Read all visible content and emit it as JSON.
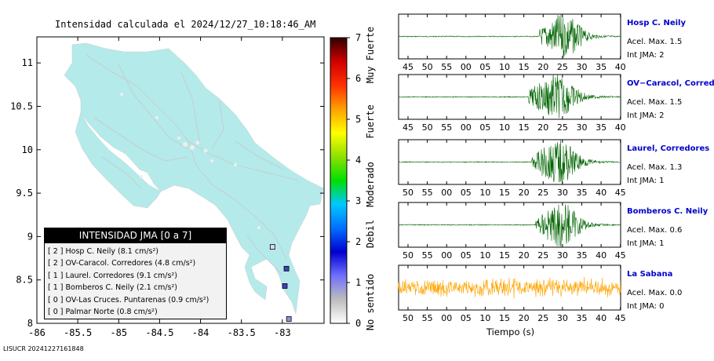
{
  "title": "Intensidad calculada el 2024/12/27_10:18:46_AM",
  "footer": "LISUCR 20241227161848",
  "map": {
    "x_ticks": [
      "-86",
      "-85.5",
      "-85",
      "-84.5",
      "-84",
      "-83.5",
      "-83"
    ],
    "y_ticks": [
      "11",
      "10.5",
      "10",
      "9.5",
      "9",
      "8.5",
      "8"
    ],
    "land_color": "#b4eaea",
    "stations": [
      {
        "lon": -83.12,
        "lat": 8.88,
        "color": "#d8d8ff"
      },
      {
        "lon": -82.95,
        "lat": 8.63,
        "color": "#4040c0"
      },
      {
        "lon": -82.97,
        "lat": 8.43,
        "color": "#4040c0"
      },
      {
        "lon": -82.92,
        "lat": 8.05,
        "color": "#9090e0"
      }
    ]
  },
  "legend": {
    "header": "INTENSIDAD JMA [0 a 7]",
    "items": [
      {
        "jma": "[ 2 ]",
        "text": "Hosp C. Neily (8.1 cm/s²)"
      },
      {
        "jma": "[ 2 ]",
        "text": "OV-Caracol. Corredores (4.8 cm/s²)"
      },
      {
        "jma": "[ 1 ]",
        "text": "Laurel. Corredores (9.1 cm/s²)"
      },
      {
        "jma": "[ 1 ]",
        "text": "Bomberos C. Neily (2.1 cm/s²)"
      },
      {
        "jma": "[ 0 ]",
        "text": "OV-Las Cruces. Puntarenas (0.9 cm/s²)"
      },
      {
        "jma": "[ 0 ]",
        "text": "Palmar Norte (0.8 cm/s²)"
      }
    ]
  },
  "colorbar": {
    "ticks": [
      "0",
      "1",
      "2",
      "3",
      "4",
      "5",
      "6",
      "7"
    ],
    "labels": [
      "No sentido",
      "Debil",
      "Moderado",
      "Fuerte",
      "Muy Fuerte"
    ],
    "colors": [
      "#ffffff",
      "#bdbdbd",
      "#7070ff",
      "#0000d0",
      "#0070ff",
      "#00c8ff",
      "#00e000",
      "#90e000",
      "#ffff00",
      "#ffa000",
      "#ff3000",
      "#d00000",
      "#300000"
    ]
  },
  "waveforms": {
    "xlabel": "Tiempo (s)",
    "panels": [
      {
        "name": "Hosp C. Neily",
        "acel": "Acel. Max. 1.5",
        "int": "Int JMA: 2",
        "color": "#006400",
        "ticks": [
          "45",
          "50",
          "55",
          "00",
          "05",
          "10",
          "15",
          "20",
          "25",
          "30",
          "35",
          "40"
        ],
        "first": 45,
        "onset": 23
      },
      {
        "name": "OV−Caracol, Corredore",
        "acel": "Acel. Max. 1.5",
        "int": "Int JMA: 2",
        "color": "#006400",
        "ticks": [
          "45",
          "50",
          "55",
          "00",
          "05",
          "10",
          "15",
          "20",
          "25",
          "30",
          "35",
          "40"
        ],
        "first": 45,
        "onset": 20
      },
      {
        "name": "Laurel, Corredores",
        "acel": "Acel. Max. 1.3",
        "int": "Int JMA: 1",
        "color": "#006400",
        "ticks": [
          "50",
          "55",
          "00",
          "05",
          "10",
          "15",
          "20",
          "25",
          "30",
          "35",
          "40",
          "45"
        ],
        "first": 50,
        "onset": 21
      },
      {
        "name": "Bomberos C. Neily",
        "acel": "Acel. Max. 0.6",
        "int": "Int JMA: 1",
        "color": "#006400",
        "ticks": [
          "50",
          "55",
          "00",
          "05",
          "10",
          "15",
          "20",
          "25",
          "30",
          "35",
          "40",
          "45"
        ],
        "first": 50,
        "onset": 22
      },
      {
        "name": "La Sabana",
        "acel": "Acel. Max. 0.0",
        "int": "Int JMA: 0",
        "color": "#ffa500",
        "ticks": [
          "50",
          "55",
          "00",
          "05",
          "10",
          "15",
          "20",
          "25",
          "30",
          "35",
          "40",
          "45"
        ],
        "first": 50,
        "onset": -1
      }
    ]
  },
  "chart_data": {
    "type": "line",
    "title": "Intensidad calculada el 2024/12/27_10:18:46_AM",
    "xlabel": "Tiempo (s)",
    "series": [
      {
        "name": "Hosp C. Neily",
        "peak": 1.5,
        "jma": 2
      },
      {
        "name": "OV−Caracol, Corredore",
        "peak": 1.5,
        "jma": 2
      },
      {
        "name": "Laurel, Corredores",
        "peak": 1.3,
        "jma": 1
      },
      {
        "name": "Bomberos C. Neily",
        "peak": 0.6,
        "jma": 1
      },
      {
        "name": "La Sabana",
        "peak": 0.0,
        "jma": 0
      }
    ]
  }
}
